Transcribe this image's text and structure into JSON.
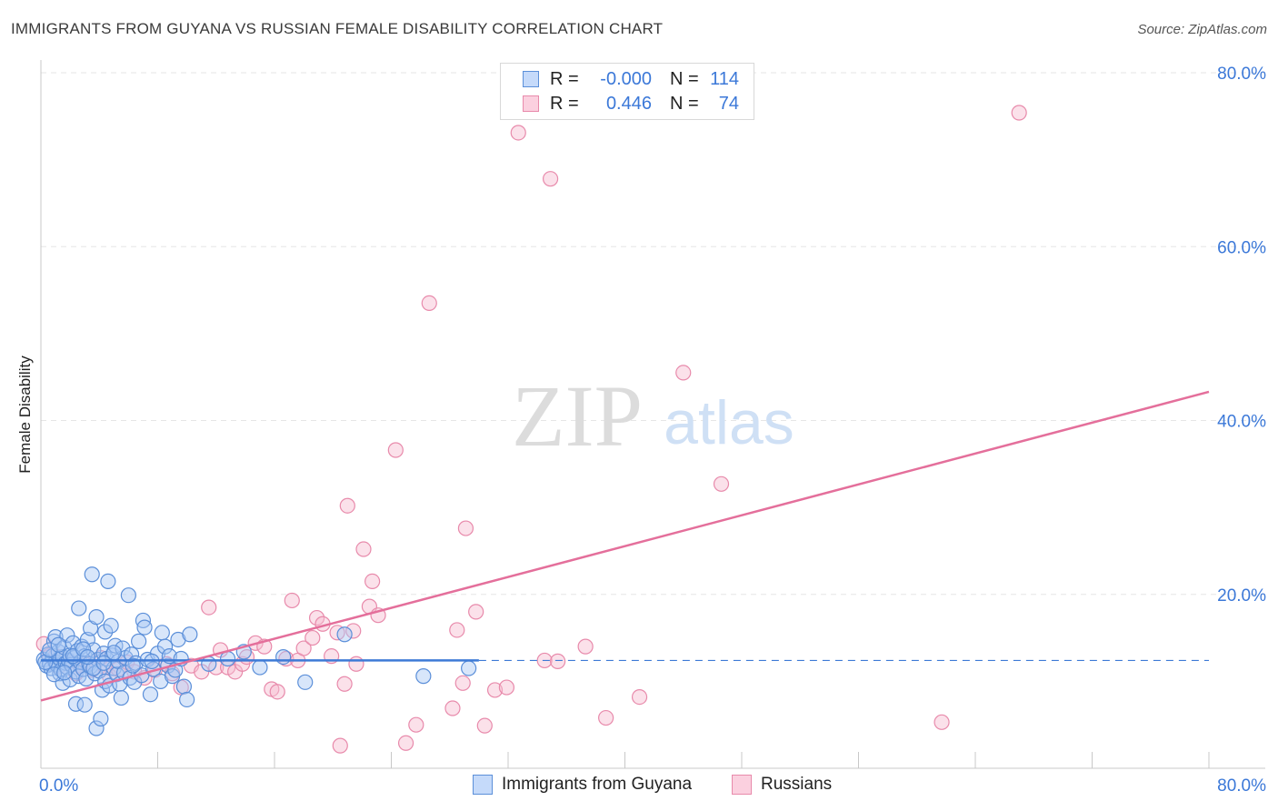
{
  "header": {
    "title": "IMMIGRANTS FROM GUYANA VS RUSSIAN FEMALE DISABILITY CORRELATION CHART",
    "source": "Source: ZipAtlas.com"
  },
  "watermark": {
    "zip": "ZIP",
    "atlas": "atlas"
  },
  "legend": {
    "series": [
      {
        "r_label": "R =",
        "r_value": "-0.000",
        "n_label": "N =",
        "n_value": "114"
      },
      {
        "r_label": "R =",
        "r_value": "0.446",
        "n_label": "N =",
        "n_value": "74"
      }
    ]
  },
  "colors": {
    "guyana_fill": "#a9c8f5",
    "guyana_stroke": "#5b8fd9",
    "guyana_line": "#3d7ad6",
    "russian_fill": "#f7bcd0",
    "russian_stroke": "#e88aab",
    "russian_line": "#e46f9b",
    "axis_text": "#3b78d8",
    "grid": "#e6e6e6"
  },
  "chart_data": {
    "type": "scatter",
    "title": "IMMIGRANTS FROM GUYANA VS RUSSIAN FEMALE DISABILITY CORRELATION CHART",
    "xlabel": "",
    "ylabel": "Female Disability",
    "xlim": [
      0,
      80
    ],
    "ylim": [
      0,
      80
    ],
    "x_tick_labels": [
      "0.0%",
      "80.0%"
    ],
    "y_tick_labels": [
      "20.0%",
      "40.0%",
      "60.0%",
      "80.0%"
    ],
    "y_ticks": [
      20,
      40,
      60,
      80
    ],
    "grid": true,
    "legend_position": "top-center",
    "series": [
      {
        "name": "Immigrants from Guyana",
        "trend": {
          "x": [
            0,
            30
          ],
          "y": [
            12.4,
            12.4
          ],
          "extend_dashed_to": 80
        },
        "points": [
          [
            0.2,
            12.5
          ],
          [
            0.4,
            11.8
          ],
          [
            0.5,
            13.1
          ],
          [
            0.6,
            12.0
          ],
          [
            0.7,
            11.5
          ],
          [
            0.8,
            12.9
          ],
          [
            0.9,
            14.6
          ],
          [
            1.0,
            15.1
          ],
          [
            1.0,
            12.2
          ],
          [
            1.1,
            11.9
          ],
          [
            1.2,
            13.4
          ],
          [
            1.3,
            12.6
          ],
          [
            1.3,
            10.9
          ],
          [
            1.4,
            11.3
          ],
          [
            1.5,
            12.8
          ],
          [
            1.5,
            9.8
          ],
          [
            1.6,
            13.9
          ],
          [
            1.7,
            12.1
          ],
          [
            1.8,
            11.6
          ],
          [
            1.8,
            15.3
          ],
          [
            1.9,
            12.4
          ],
          [
            2.0,
            10.2
          ],
          [
            2.0,
            13.0
          ],
          [
            2.1,
            11.9
          ],
          [
            2.2,
            14.4
          ],
          [
            2.3,
            12.7
          ],
          [
            2.4,
            11.1
          ],
          [
            2.4,
            7.4
          ],
          [
            2.5,
            13.5
          ],
          [
            2.6,
            10.6
          ],
          [
            2.6,
            18.4
          ],
          [
            2.7,
            12.2
          ],
          [
            2.8,
            14.0
          ],
          [
            2.9,
            11.4
          ],
          [
            3.0,
            7.3
          ],
          [
            3.0,
            12.9
          ],
          [
            3.1,
            10.3
          ],
          [
            3.2,
            14.8
          ],
          [
            3.3,
            12.0
          ],
          [
            3.4,
            16.1
          ],
          [
            3.4,
            11.7
          ],
          [
            3.5,
            22.3
          ],
          [
            3.6,
            13.6
          ],
          [
            3.7,
            10.9
          ],
          [
            3.8,
            17.4
          ],
          [
            3.8,
            4.6
          ],
          [
            3.9,
            12.5
          ],
          [
            4.0,
            11.2
          ],
          [
            4.1,
            5.7
          ],
          [
            4.2,
            9.0
          ],
          [
            4.3,
            13.2
          ],
          [
            4.4,
            10.0
          ],
          [
            4.4,
            15.7
          ],
          [
            4.5,
            12.6
          ],
          [
            4.6,
            21.5
          ],
          [
            4.7,
            9.5
          ],
          [
            4.8,
            16.4
          ],
          [
            4.9,
            13.0
          ],
          [
            5.0,
            11.5
          ],
          [
            5.1,
            14.1
          ],
          [
            5.2,
            10.8
          ],
          [
            5.3,
            12.3
          ],
          [
            5.4,
            9.7
          ],
          [
            5.5,
            8.1
          ],
          [
            5.6,
            13.8
          ],
          [
            5.7,
            11.0
          ],
          [
            5.8,
            12.7
          ],
          [
            6.0,
            19.9
          ],
          [
            6.1,
            10.4
          ],
          [
            6.2,
            13.1
          ],
          [
            6.4,
            9.9
          ],
          [
            6.5,
            12.1
          ],
          [
            6.7,
            14.6
          ],
          [
            6.9,
            10.7
          ],
          [
            7.0,
            17.0
          ],
          [
            7.1,
            16.2
          ],
          [
            7.3,
            12.5
          ],
          [
            7.5,
            8.5
          ],
          [
            7.7,
            11.4
          ],
          [
            8.0,
            13.2
          ],
          [
            8.2,
            10.0
          ],
          [
            8.3,
            15.6
          ],
          [
            8.5,
            14.0
          ],
          [
            8.7,
            11.8
          ],
          [
            8.8,
            12.9
          ],
          [
            9.0,
            10.6
          ],
          [
            9.2,
            11.3
          ],
          [
            9.4,
            14.8
          ],
          [
            9.6,
            12.6
          ],
          [
            9.8,
            9.4
          ],
          [
            10.0,
            7.9
          ],
          [
            10.2,
            15.4
          ],
          [
            0.3,
            12.2
          ],
          [
            0.6,
            13.6
          ],
          [
            0.9,
            10.8
          ],
          [
            1.2,
            14.2
          ],
          [
            1.6,
            11.0
          ],
          [
            2.2,
            12.9
          ],
          [
            2.9,
            13.7
          ],
          [
            3.6,
            11.5
          ],
          [
            4.3,
            12.1
          ],
          [
            5.0,
            13.3
          ],
          [
            6.3,
            11.8
          ],
          [
            7.6,
            12.3
          ],
          [
            11.5,
            12.0
          ],
          [
            12.8,
            12.6
          ],
          [
            13.9,
            13.4
          ],
          [
            15.0,
            11.6
          ],
          [
            16.6,
            12.8
          ],
          [
            18.1,
            9.9
          ],
          [
            20.8,
            15.4
          ],
          [
            26.2,
            10.6
          ],
          [
            29.3,
            11.5
          ],
          [
            3.2,
            12.8
          ]
        ]
      },
      {
        "name": "Russians",
        "trend": {
          "x": [
            0,
            80
          ],
          "y": [
            7.8,
            43.3
          ]
        },
        "points": [
          [
            0.2,
            14.3
          ],
          [
            0.6,
            13.0
          ],
          [
            1.2,
            11.7
          ],
          [
            1.9,
            12.3
          ],
          [
            2.4,
            10.9
          ],
          [
            3.0,
            12.0
          ],
          [
            3.5,
            11.3
          ],
          [
            4.1,
            12.7
          ],
          [
            4.7,
            10.6
          ],
          [
            5.3,
            11.4
          ],
          [
            5.9,
            12.2
          ],
          [
            6.4,
            11.1
          ],
          [
            7.1,
            10.4
          ],
          [
            7.8,
            11.3
          ],
          [
            8.6,
            12.0
          ],
          [
            9.0,
            10.9
          ],
          [
            9.6,
            9.3
          ],
          [
            10.3,
            11.8
          ],
          [
            11.0,
            11.1
          ],
          [
            11.5,
            18.5
          ],
          [
            12.0,
            11.6
          ],
          [
            12.3,
            13.6
          ],
          [
            12.8,
            11.6
          ],
          [
            13.3,
            11.1
          ],
          [
            13.8,
            12.0
          ],
          [
            14.1,
            12.8
          ],
          [
            14.7,
            14.4
          ],
          [
            15.3,
            14.0
          ],
          [
            15.8,
            9.1
          ],
          [
            16.2,
            8.8
          ],
          [
            16.8,
            12.6
          ],
          [
            17.2,
            19.3
          ],
          [
            17.6,
            12.4
          ],
          [
            18.0,
            13.8
          ],
          [
            18.6,
            15.0
          ],
          [
            18.9,
            17.3
          ],
          [
            19.3,
            16.6
          ],
          [
            19.9,
            12.9
          ],
          [
            20.3,
            15.6
          ],
          [
            20.5,
            2.6
          ],
          [
            20.8,
            9.7
          ],
          [
            21.0,
            30.2
          ],
          [
            21.4,
            15.8
          ],
          [
            21.6,
            12.0
          ],
          [
            22.1,
            25.2
          ],
          [
            22.5,
            18.6
          ],
          [
            22.7,
            21.5
          ],
          [
            23.1,
            17.6
          ],
          [
            24.3,
            36.6
          ],
          [
            25.0,
            2.9
          ],
          [
            25.7,
            5.0
          ],
          [
            26.6,
            53.5
          ],
          [
            28.2,
            6.9
          ],
          [
            28.5,
            15.9
          ],
          [
            28.9,
            9.8
          ],
          [
            29.1,
            27.6
          ],
          [
            29.8,
            18.0
          ],
          [
            30.4,
            4.9
          ],
          [
            31.1,
            9.0
          ],
          [
            31.9,
            9.3
          ],
          [
            32.7,
            73.1
          ],
          [
            34.5,
            12.4
          ],
          [
            34.9,
            67.8
          ],
          [
            35.4,
            12.3
          ],
          [
            37.3,
            14.0
          ],
          [
            38.7,
            5.8
          ],
          [
            41.0,
            8.2
          ],
          [
            44.0,
            45.5
          ],
          [
            46.6,
            32.7
          ],
          [
            61.7,
            5.3
          ],
          [
            67.0,
            75.4
          ],
          [
            1.0,
            12.9
          ],
          [
            2.7,
            11.8
          ],
          [
            4.4,
            11.6
          ]
        ]
      }
    ]
  },
  "axis": {
    "y_ticks": [
      {
        "label": "80.0%",
        "value": 80
      },
      {
        "label": "60.0%",
        "value": 60
      },
      {
        "label": "40.0%",
        "value": 40
      },
      {
        "label": "20.0%",
        "value": 20
      }
    ],
    "x_min_label": "0.0%",
    "x_max_label": "80.0%",
    "y_title": "Female Disability"
  },
  "bottom_legend": {
    "items": [
      {
        "label": "Immigrants from Guyana"
      },
      {
        "label": "Russians"
      }
    ]
  }
}
